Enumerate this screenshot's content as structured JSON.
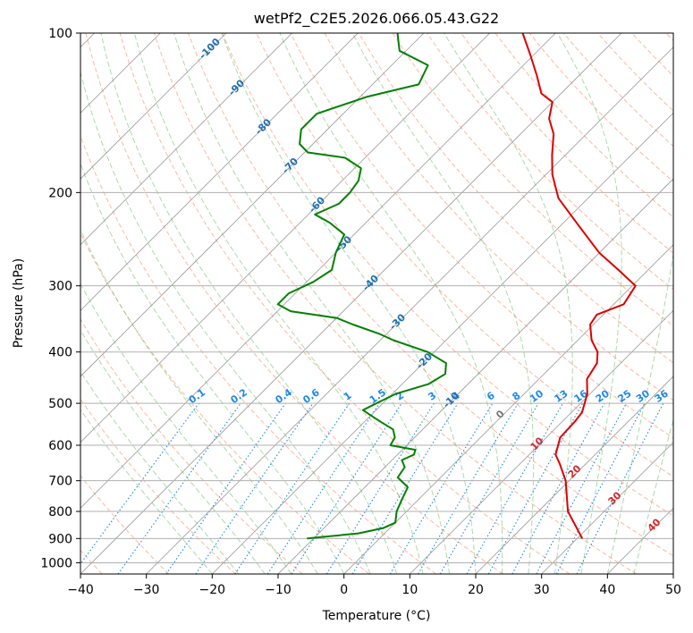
{
  "chart_data": {
    "type": "skew-t",
    "title": "wetPf2_C2E5.2026.066.05.43.G22",
    "xlabel": "Temperature (°C)",
    "ylabel": "Pressure (hPa)",
    "xlim": [
      -40,
      50
    ],
    "ylim": [
      1050,
      100
    ],
    "x_ticks": [
      -40,
      -30,
      -20,
      -10,
      0,
      10,
      20,
      30,
      40,
      50
    ],
    "x_tick_labels": [
      "−40",
      "−30",
      "−20",
      "−10",
      "0",
      "10",
      "20",
      "30",
      "40",
      "50"
    ],
    "y_ticks": [
      100,
      200,
      300,
      400,
      500,
      600,
      700,
      800,
      900,
      1000
    ],
    "y_tick_labels": [
      "100",
      "200",
      "300",
      "400",
      "500",
      "600",
      "700",
      "800",
      "900",
      "1000"
    ],
    "grid": true,
    "colors": {
      "temperature": "#dd0000",
      "dewpoint": "#008000",
      "isotherm": "#999999",
      "dry_adiabat": "#ff9977",
      "moist_adiabat": "#66bb66",
      "mixing_ratio": "#1e88e5",
      "isotherm_label": "#1f6fb0",
      "dry_label": "#d62728",
      "zero_label": "#777777"
    },
    "series": [
      {
        "name": "Temperature",
        "pressure_hPa": [
          900,
          800,
          700,
          650,
          625,
          580,
          540,
          520,
          480,
          450,
          420,
          400,
          380,
          355,
          340,
          325,
          300,
          280,
          260,
          230,
          205,
          185,
          170,
          155,
          145,
          135,
          130,
          120,
          110,
          100
        ],
        "temp_C": [
          30.8,
          24.5,
          19.5,
          16.0,
          14.0,
          12.1,
          11.9,
          11.6,
          9.6,
          7.3,
          6.4,
          4.8,
          2.1,
          -0.5,
          -1.0,
          1.5,
          0.5,
          -4.5,
          -10.0,
          -17.5,
          -24.5,
          -29.0,
          -32.0,
          -35.0,
          -38.0,
          -40.0,
          -43.0,
          -46.5,
          -50.5,
          -55.0
        ]
      },
      {
        "name": "Dewpoint",
        "pressure_hPa": [
          900,
          880,
          860,
          840,
          800,
          760,
          720,
          690,
          660,
          640,
          625,
          612,
          600,
          580,
          560,
          545,
          530,
          515,
          500,
          480,
          460,
          440,
          420,
          400,
          380,
          370,
          355,
          345,
          335,
          325,
          310,
          295,
          280,
          260,
          240,
          228,
          220,
          210,
          200,
          190,
          180,
          172,
          168,
          162,
          152,
          142,
          132,
          125,
          115,
          108,
          100
        ],
        "dewp_C": [
          -11.0,
          -4.0,
          -1.0,
          0.0,
          -1.5,
          -2.5,
          -3.5,
          -6.5,
          -7.0,
          -8.5,
          -7.5,
          -8.0,
          -12.5,
          -13.0,
          -14.5,
          -17.0,
          -19.5,
          -22.0,
          -21.0,
          -19.5,
          -16.0,
          -15.0,
          -16.5,
          -21.0,
          -28.0,
          -31.0,
          -36.5,
          -40.0,
          -48.0,
          -51.0,
          -51.0,
          -49.0,
          -48.0,
          -50.0,
          -51.5,
          -55.5,
          -59.0,
          -57.0,
          -57.0,
          -57.5,
          -59.0,
          -63.0,
          -69.5,
          -72.0,
          -74.0,
          -74.0,
          -69.0,
          -63.0,
          -64.5,
          -71.0,
          -74.0
        ]
      }
    ],
    "isotherm_labels": [
      "-100",
      "-90",
      "-80",
      "-70",
      "-60",
      "-50",
      "-40",
      "-30",
      "-20",
      "-10"
    ],
    "mixing_ratio_labels": [
      "0.1",
      "0.2",
      "0.4",
      "0.6",
      "1",
      "1.5",
      "2",
      "3",
      "4",
      "6",
      "8",
      "10",
      "13",
      "16",
      "20",
      "25",
      "30",
      "36"
    ],
    "dry_adiabat_labels": [
      "0",
      "10",
      "20",
      "30",
      "40"
    ]
  }
}
